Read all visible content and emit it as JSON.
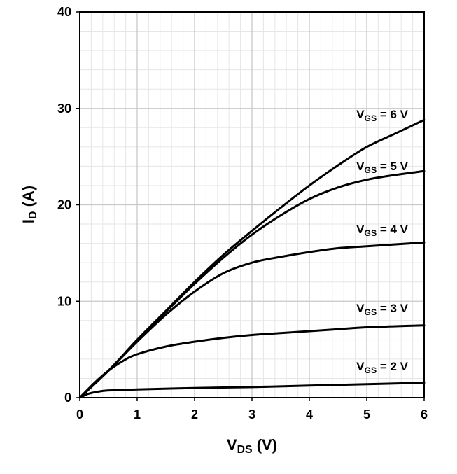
{
  "chart_data": {
    "type": "line",
    "title": "",
    "xlabel": {
      "main": "V",
      "sub": "DS",
      "rest": " (V)"
    },
    "ylabel": {
      "main": "I",
      "sub": "D",
      "rest": " (A)"
    },
    "xlim": [
      0,
      6
    ],
    "ylim": [
      0,
      40
    ],
    "x_ticks": [
      "0",
      "1",
      "2",
      "3",
      "4",
      "5",
      "6"
    ],
    "y_ticks": [
      "0",
      "10",
      "20",
      "30",
      "40"
    ],
    "grid": true,
    "colors": {
      "line": "#000000",
      "grid": "#d9d9d9",
      "axis": "#000000"
    },
    "series": [
      {
        "label": {
          "main": "V",
          "sub": "GS",
          "rest": " = 6 V"
        },
        "points": [
          [
            0,
            0
          ],
          [
            0.5,
            2.8
          ],
          [
            1,
            6.0
          ],
          [
            1.5,
            9.0
          ],
          [
            2,
            12.0
          ],
          [
            2.5,
            14.8
          ],
          [
            3,
            17.3
          ],
          [
            3.5,
            19.7
          ],
          [
            4,
            22.0
          ],
          [
            4.5,
            24.1
          ],
          [
            5,
            26.0
          ],
          [
            5.5,
            27.4
          ],
          [
            6,
            28.8
          ]
        ]
      },
      {
        "label": {
          "main": "V",
          "sub": "GS",
          "rest": " = 5 V"
        },
        "points": [
          [
            0,
            0
          ],
          [
            0.5,
            2.8
          ],
          [
            1,
            5.9
          ],
          [
            1.5,
            8.9
          ],
          [
            2,
            11.8
          ],
          [
            2.5,
            14.5
          ],
          [
            3,
            16.9
          ],
          [
            3.5,
            18.9
          ],
          [
            4,
            20.6
          ],
          [
            4.5,
            21.8
          ],
          [
            5,
            22.6
          ],
          [
            5.5,
            23.1
          ],
          [
            6,
            23.5
          ]
        ]
      },
      {
        "label": {
          "main": "V",
          "sub": "GS",
          "rest": " = 4 V"
        },
        "points": [
          [
            0,
            0
          ],
          [
            0.5,
            2.8
          ],
          [
            1,
            5.8
          ],
          [
            1.5,
            8.6
          ],
          [
            2,
            11.0
          ],
          [
            2.5,
            12.9
          ],
          [
            3,
            14.0
          ],
          [
            3.5,
            14.6
          ],
          [
            4,
            15.1
          ],
          [
            4.5,
            15.5
          ],
          [
            5,
            15.7
          ],
          [
            5.5,
            15.9
          ],
          [
            6,
            16.1
          ]
        ]
      },
      {
        "label": {
          "main": "V",
          "sub": "GS",
          "rest": " = 3 V"
        },
        "points": [
          [
            0,
            0
          ],
          [
            0.25,
            1.5
          ],
          [
            0.5,
            2.8
          ],
          [
            0.75,
            3.8
          ],
          [
            1,
            4.5
          ],
          [
            1.5,
            5.3
          ],
          [
            2,
            5.8
          ],
          [
            2.5,
            6.2
          ],
          [
            3,
            6.5
          ],
          [
            3.5,
            6.7
          ],
          [
            4,
            6.9
          ],
          [
            4.5,
            7.1
          ],
          [
            5,
            7.3
          ],
          [
            5.5,
            7.4
          ],
          [
            6,
            7.5
          ]
        ]
      },
      {
        "label": {
          "main": "V",
          "sub": "GS",
          "rest": " = 2 V"
        },
        "points": [
          [
            0,
            0
          ],
          [
            0.15,
            0.4
          ],
          [
            0.3,
            0.6
          ],
          [
            0.5,
            0.75
          ],
          [
            1,
            0.85
          ],
          [
            2,
            1.0
          ],
          [
            3,
            1.1
          ],
          [
            4,
            1.25
          ],
          [
            5,
            1.4
          ],
          [
            6,
            1.55
          ]
        ]
      }
    ]
  }
}
